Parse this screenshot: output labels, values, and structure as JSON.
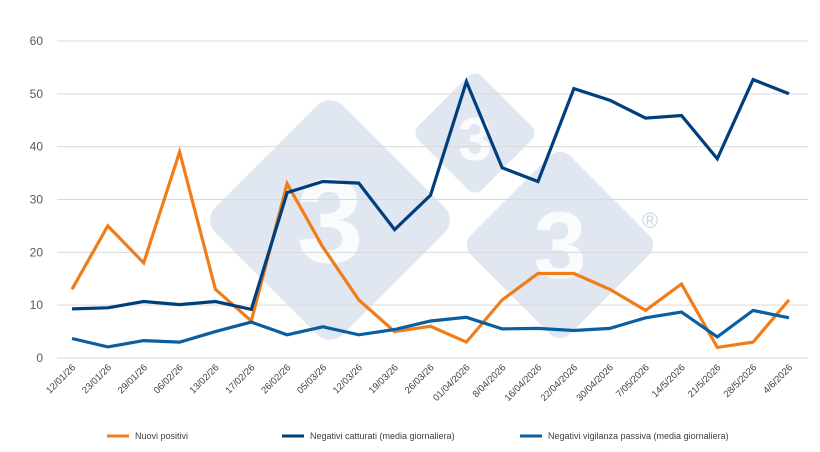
{
  "chart_data": {
    "type": "line",
    "title": "",
    "xlabel": "",
    "ylabel": "",
    "ylim": [
      0,
      60
    ],
    "yticks": [
      0,
      10,
      20,
      30,
      40,
      50,
      60
    ],
    "grid": true,
    "legend_position": "bottom",
    "categories": [
      "12/01/26",
      "23/01/26",
      "29/01/26",
      "06/02/26",
      "13/02/26",
      "17/02/26",
      "26/02/26",
      "05/03/26",
      "12/03/26",
      "19/03/26",
      "26/03/26",
      "01/04/2026",
      "8/04/2026",
      "16/04/2026",
      "22/04/2026",
      "30/04/2026",
      "7/05/2026",
      "14/5/2026",
      "21/5/2026",
      "28/5/2026",
      "4/6/2026"
    ],
    "series": [
      {
        "name": "Nuovi positivi",
        "color": "#f07d1a",
        "values": [
          13,
          25,
          18,
          39,
          13,
          7,
          33,
          21,
          11,
          5,
          6,
          3,
          11,
          16,
          16,
          13,
          9,
          14,
          2,
          3,
          11
        ]
      },
      {
        "name": "Negativi catturati (media giornaliera)",
        "color": "#003f7d",
        "values": [
          9.3,
          9.5,
          10.7,
          10.1,
          10.7,
          9.2,
          31.3,
          33.4,
          33.1,
          24.3,
          30.8,
          52.3,
          36.0,
          33.4,
          51.0,
          48.8,
          45.4,
          45.9,
          37.7,
          52.7,
          50.0
        ]
      },
      {
        "name": "Negativi vigilanza passiva (media giornaliera)",
        "color": "#0a5fa3",
        "values": [
          3.7,
          2.1,
          3.3,
          3.0,
          5.0,
          6.8,
          4.4,
          5.9,
          4.4,
          5.4,
          7.0,
          7.7,
          5.5,
          5.6,
          5.2,
          5.6,
          7.6,
          8.7,
          4.0,
          9.0,
          7.6
        ]
      }
    ]
  },
  "watermark": {
    "glyph": "3",
    "registered": "®"
  }
}
